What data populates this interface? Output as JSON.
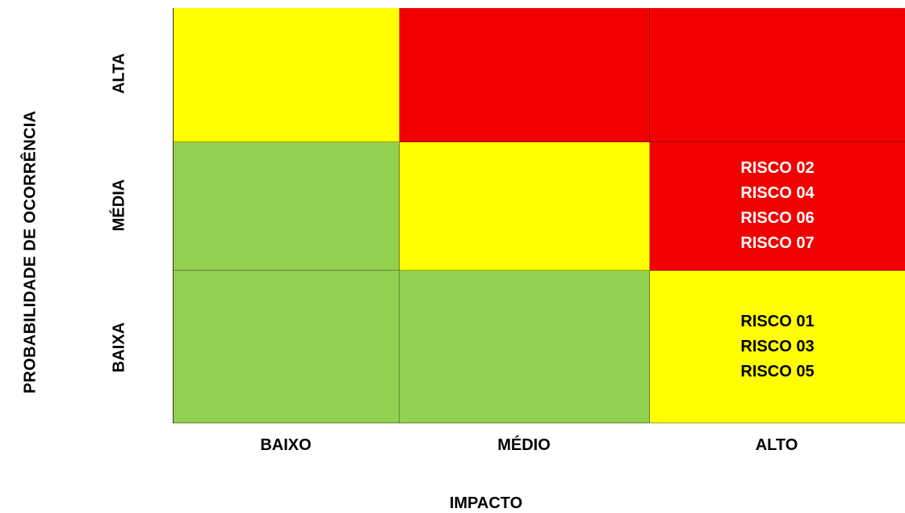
{
  "axes": {
    "y_title": "PROBABILIDADE DE OCORRÊNCIA",
    "x_title": "IMPACTO",
    "rows": [
      "ALTA",
      "MÉDIA",
      "BAIXA"
    ],
    "cols": [
      "BAIXO",
      "MÉDIO",
      "ALTO"
    ]
  },
  "colors": {
    "green": "#92d050",
    "yellow": "#ffff00",
    "red": "#f20000"
  },
  "cells": [
    [
      {
        "color": "#ffff00",
        "items": [],
        "text_color": "#000000"
      },
      {
        "color": "#f20000",
        "items": [],
        "text_color": "#ffffff"
      },
      {
        "color": "#f20000",
        "items": [],
        "text_color": "#ffffff"
      }
    ],
    [
      {
        "color": "#92d050",
        "items": [],
        "text_color": "#000000"
      },
      {
        "color": "#ffff00",
        "items": [],
        "text_color": "#000000"
      },
      {
        "color": "#f20000",
        "items": [
          "RISCO 02",
          "RISCO 04",
          "RISCO 06",
          "RISCO 07"
        ],
        "text_color": "#ffffff"
      }
    ],
    [
      {
        "color": "#92d050",
        "items": [],
        "text_color": "#000000"
      },
      {
        "color": "#92d050",
        "items": [],
        "text_color": "#000000"
      },
      {
        "color": "#ffff00",
        "items": [
          "RISCO 01",
          "RISCO 03",
          "RISCO 05"
        ],
        "text_color": "#000000"
      }
    ]
  ]
}
